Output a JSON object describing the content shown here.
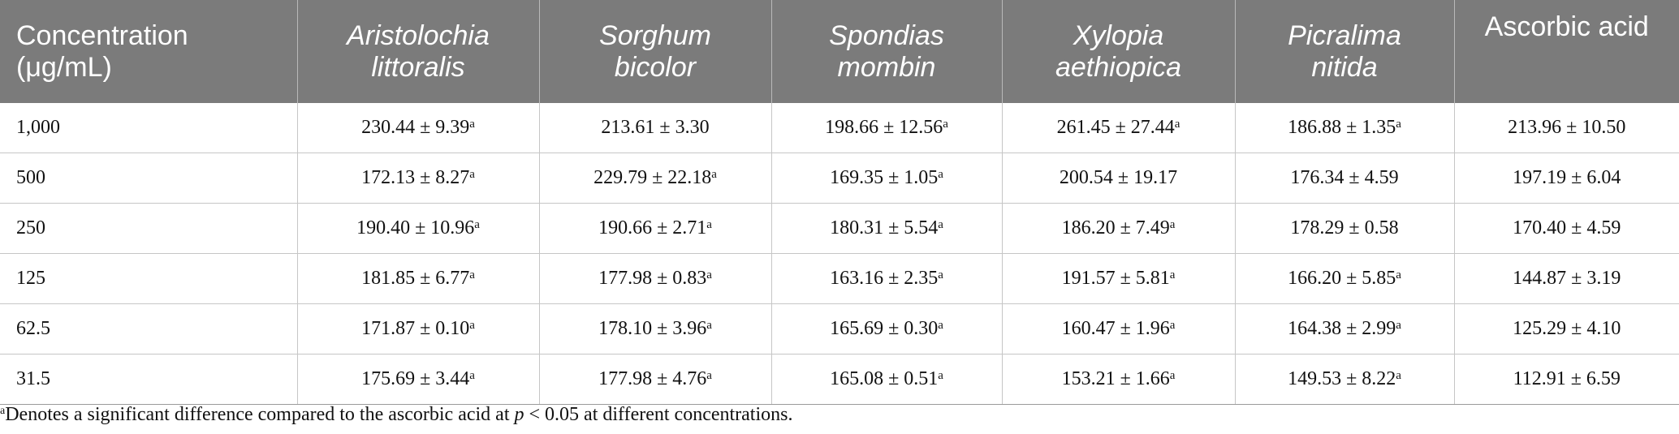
{
  "table": {
    "headers": [
      {
        "line1": "Concentration",
        "line2": "(μg/mL)"
      },
      {
        "line1": "Aristolochia",
        "line2": "littoralis"
      },
      {
        "line1": "Sorghum",
        "line2": "bicolor"
      },
      {
        "line1": "Spondias",
        "line2": "mombin"
      },
      {
        "line1": "Xylopia",
        "line2": "aethiopica"
      },
      {
        "line1": "Picralima",
        "line2": "nitida"
      },
      {
        "line1": "Ascorbic acid",
        "line2": ""
      }
    ],
    "rows": [
      {
        "label": "1,000",
        "cells": [
          {
            "v": "230.44 ± 9.39",
            "s": "a"
          },
          {
            "v": "213.61 ± 3.30",
            "s": ""
          },
          {
            "v": "198.66 ± 12.56",
            "s": "a"
          },
          {
            "v": "261.45 ± 27.44",
            "s": "a"
          },
          {
            "v": "186.88 ± 1.35",
            "s": "a"
          },
          {
            "v": "213.96 ± 10.50",
            "s": ""
          }
        ]
      },
      {
        "label": "500",
        "cells": [
          {
            "v": "172.13 ± 8.27",
            "s": "a"
          },
          {
            "v": "229.79 ± 22.18",
            "s": "a"
          },
          {
            "v": "169.35 ± 1.05",
            "s": "a"
          },
          {
            "v": "200.54 ± 19.17",
            "s": ""
          },
          {
            "v": "176.34 ± 4.59",
            "s": ""
          },
          {
            "v": "197.19 ± 6.04",
            "s": ""
          }
        ]
      },
      {
        "label": "250",
        "cells": [
          {
            "v": "190.40 ± 10.96",
            "s": "a"
          },
          {
            "v": "190.66 ± 2.71",
            "s": "a"
          },
          {
            "v": "180.31 ± 5.54",
            "s": "a"
          },
          {
            "v": "186.20 ± 7.49",
            "s": "a"
          },
          {
            "v": "178.29 ± 0.58",
            "s": ""
          },
          {
            "v": "170.40 ± 4.59",
            "s": ""
          }
        ]
      },
      {
        "label": "125",
        "cells": [
          {
            "v": "181.85 ± 6.77",
            "s": "a"
          },
          {
            "v": "177.98 ± 0.83",
            "s": "a"
          },
          {
            "v": "163.16 ± 2.35",
            "s": "a"
          },
          {
            "v": "191.57 ± 5.81",
            "s": "a"
          },
          {
            "v": "166.20 ± 5.85",
            "s": "a"
          },
          {
            "v": "144.87 ± 3.19",
            "s": ""
          }
        ]
      },
      {
        "label": "62.5",
        "cells": [
          {
            "v": "171.87 ± 0.10",
            "s": "a"
          },
          {
            "v": "178.10 ± 3.96",
            "s": "a"
          },
          {
            "v": "165.69 ± 0.30",
            "s": "a"
          },
          {
            "v": "160.47 ± 1.96",
            "s": "a"
          },
          {
            "v": "164.38 ± 2.99",
            "s": "a"
          },
          {
            "v": "125.29 ± 4.10",
            "s": ""
          }
        ]
      },
      {
        "label": "31.5",
        "cells": [
          {
            "v": "175.69 ± 3.44",
            "s": "a"
          },
          {
            "v": "177.98 ± 4.76",
            "s": "a"
          },
          {
            "v": "165.08 ± 0.51",
            "s": "a"
          },
          {
            "v": "153.21 ± 1.66",
            "s": "a"
          },
          {
            "v": "149.53 ± 8.22",
            "s": "a"
          },
          {
            "v": "112.91 ± 6.59",
            "s": ""
          }
        ]
      }
    ]
  },
  "footnote": {
    "mark": "a",
    "text_before": "Denotes a significant difference compared to the ascorbic acid at ",
    "p_symbol": "p",
    "text_after": " < 0.05 at different concentrations."
  },
  "colors": {
    "header_bg": "#7b7b7b",
    "header_text": "#ffffff",
    "grid": "#c6c6c6"
  }
}
